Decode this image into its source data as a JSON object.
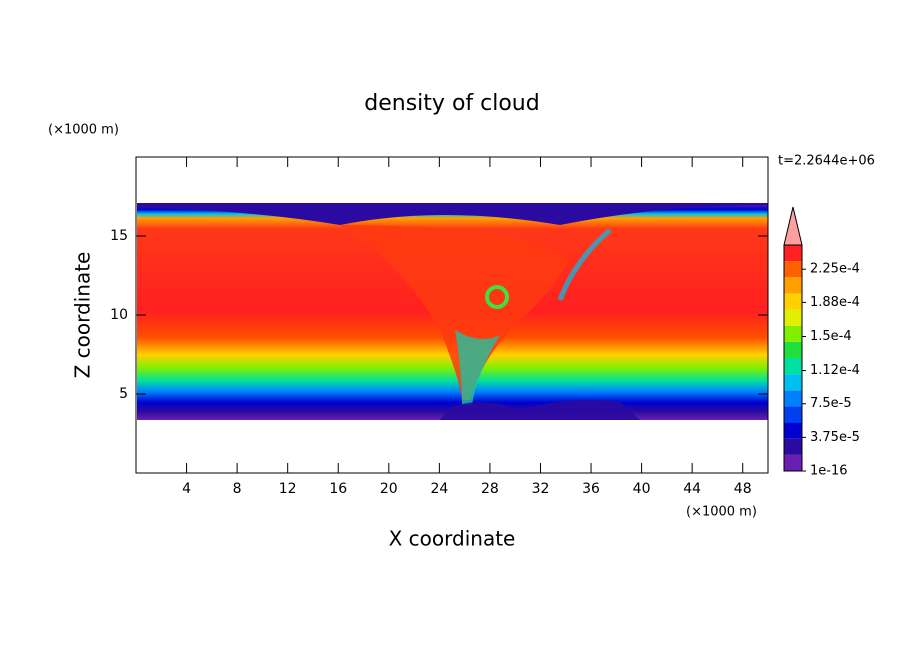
{
  "chart_data": {
    "type": "contour",
    "title": "density of cloud",
    "annotation": "t=2.2644e+06",
    "xlabel": "X coordinate",
    "ylabel": "Z coordinate",
    "xunit": "(×1000 m)",
    "yunit": "(×1000 m)",
    "xlim": [
      0,
      50
    ],
    "xticks": [
      4,
      8,
      12,
      16,
      20,
      24,
      28,
      32,
      36,
      40,
      44,
      48
    ],
    "ylim": [
      0,
      20
    ],
    "yticks": [
      5,
      10,
      15
    ],
    "colorbar": {
      "lim": [
        1e-16,
        0.000252
      ],
      "ticks": [
        {
          "value": 1e-16,
          "label": "1e-16"
        },
        {
          "value": 3.75e-05,
          "label": "3.75e-5"
        },
        {
          "value": 7.5e-05,
          "label": "7.5e-5"
        },
        {
          "value": 0.000112,
          "label": "1.12e-4"
        },
        {
          "value": 0.00015,
          "label": "1.5e-4"
        },
        {
          "value": 0.000188,
          "label": "1.88e-4"
        },
        {
          "value": 0.000225,
          "label": "2.25e-4"
        }
      ],
      "colors": [
        "#6a1fb0",
        "#2a0aa0",
        "#0000d0",
        "#0040f0",
        "#0080ff",
        "#00c0f0",
        "#00e0a0",
        "#20e040",
        "#80f000",
        "#e0f000",
        "#ffd000",
        "#ffa000",
        "#ff6000",
        "#ff2020"
      ],
      "over_color": "#ffa0a0"
    }
  }
}
